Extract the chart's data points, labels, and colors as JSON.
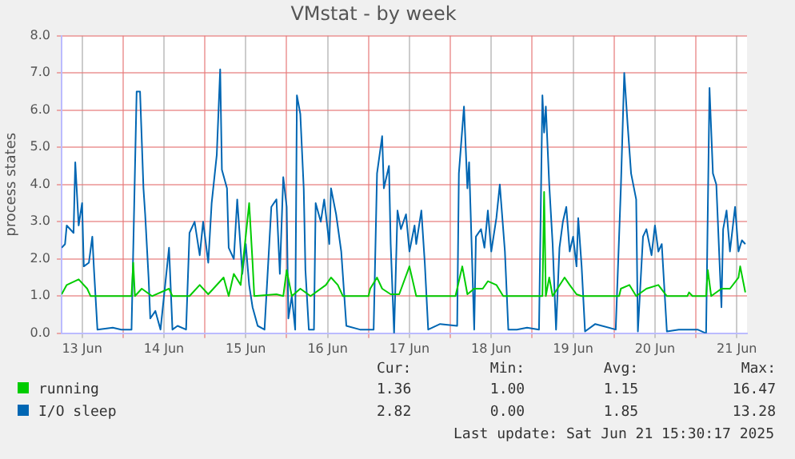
{
  "chart_data": {
    "type": "line",
    "title": "VMstat - by week",
    "ylabel": "process states",
    "xlim": [
      "2025-06-13T06:00",
      "2025-06-21T15:00"
    ],
    "xticks": [
      {
        "value": "2025-06-13T12:00",
        "label": "13 Jun"
      },
      {
        "value": "2025-06-14T00:00",
        "label": null
      },
      {
        "value": "2025-06-14T12:00",
        "label": "14 Jun"
      },
      {
        "value": "2025-06-15T00:00",
        "label": null
      },
      {
        "value": "2025-06-15T12:00",
        "label": "15 Jun"
      },
      {
        "value": "2025-06-16T00:00",
        "label": null
      },
      {
        "value": "2025-06-16T12:00",
        "label": "16 Jun"
      },
      {
        "value": "2025-06-17T00:00",
        "label": null
      },
      {
        "value": "2025-06-17T12:00",
        "label": "17 Jun"
      },
      {
        "value": "2025-06-18T00:00",
        "label": null
      },
      {
        "value": "2025-06-18T12:00",
        "label": "18 Jun"
      },
      {
        "value": "2025-06-19T00:00",
        "label": null
      },
      {
        "value": "2025-06-19T12:00",
        "label": "19 Jun"
      },
      {
        "value": "2025-06-20T00:00",
        "label": null
      },
      {
        "value": "2025-06-20T12:00",
        "label": "20 Jun"
      },
      {
        "value": "2025-06-21T00:00",
        "label": null
      },
      {
        "value": "2025-06-21T12:00",
        "label": "21 Jun"
      }
    ],
    "ylim": [
      0,
      8
    ],
    "yticks": [
      {
        "value": 0,
        "label": "0.0"
      },
      {
        "value": 1,
        "label": "1.0"
      },
      {
        "value": 2,
        "label": "2.0"
      },
      {
        "value": 3,
        "label": "3.0"
      },
      {
        "value": 4,
        "label": "4.0"
      },
      {
        "value": 5,
        "label": "5.0"
      },
      {
        "value": 6,
        "label": "6.0"
      },
      {
        "value": 7,
        "label": "7.0"
      },
      {
        "value": 8,
        "label": "8.0"
      }
    ],
    "grid": true,
    "legend": "bottom",
    "marker": "none",
    "line_style": "solid",
    "series": [
      {
        "name": "running",
        "color": "#00cc00",
        "x": [
          "2025-06-13T06:00",
          "2025-06-13T07:30",
          "2025-06-13T11:00",
          "2025-06-13T13:30",
          "2025-06-13T14:30",
          "2025-06-14T02:30",
          "2025-06-14T03:00",
          "2025-06-14T03:30",
          "2025-06-14T05:30",
          "2025-06-14T08:30",
          "2025-06-14T13:30",
          "2025-06-14T14:30",
          "2025-06-14T19:30",
          "2025-06-14T22:30",
          "2025-06-15T01:00",
          "2025-06-15T05:30",
          "2025-06-15T07:00",
          "2025-06-15T08:30",
          "2025-06-15T10:30",
          "2025-06-15T13:00",
          "2025-06-15T14:00",
          "2025-06-15T14:30",
          "2025-06-15T21:00",
          "2025-06-15T23:00",
          "2025-06-16T00:00",
          "2025-06-16T01:30",
          "2025-06-16T04:00",
          "2025-06-16T07:00",
          "2025-06-16T11:30",
          "2025-06-16T13:00",
          "2025-06-16T15:00",
          "2025-06-16T16:30",
          "2025-06-17T00:00",
          "2025-06-17T00:30",
          "2025-06-17T02:30",
          "2025-06-17T04:00",
          "2025-06-17T06:30",
          "2025-06-17T09:00",
          "2025-06-17T12:00",
          "2025-06-17T14:00",
          "2025-06-18T01:30",
          "2025-06-18T03:30",
          "2025-06-18T05:00",
          "2025-06-18T07:00",
          "2025-06-18T09:30",
          "2025-06-18T11:00",
          "2025-06-18T13:30",
          "2025-06-18T15:30",
          "2025-06-19T03:00",
          "2025-06-19T03:30",
          "2025-06-19T04:00",
          "2025-06-19T05:00",
          "2025-06-19T06:00",
          "2025-06-19T09:30",
          "2025-06-19T11:00",
          "2025-06-19T13:00",
          "2025-06-19T14:30",
          "2025-06-20T01:30",
          "2025-06-20T02:00",
          "2025-06-20T04:30",
          "2025-06-20T06:30",
          "2025-06-20T09:30",
          "2025-06-20T13:00",
          "2025-06-20T15:30",
          "2025-06-20T21:30",
          "2025-06-20T22:00",
          "2025-06-20T23:00",
          "2025-06-21T03:00",
          "2025-06-21T03:30",
          "2025-06-21T04:30",
          "2025-06-21T07:30",
          "2025-06-21T10:00",
          "2025-06-21T12:30",
          "2025-06-21T13:00",
          "2025-06-21T14:30"
        ],
        "values": [
          1.05,
          1.3,
          1.45,
          1.2,
          1.0,
          1.0,
          1.9,
          1.0,
          1.2,
          1.0,
          1.2,
          1.0,
          1.0,
          1.3,
          1.05,
          1.5,
          1.0,
          1.6,
          1.3,
          3.5,
          1.9,
          1.0,
          1.05,
          1.0,
          1.7,
          1.0,
          1.2,
          1.0,
          1.3,
          1.5,
          1.3,
          1.0,
          1.0,
          1.2,
          1.5,
          1.2,
          1.05,
          1.05,
          1.8,
          1.0,
          1.0,
          1.8,
          1.05,
          1.2,
          1.2,
          1.4,
          1.3,
          1.0,
          1.0,
          3.8,
          1.0,
          1.5,
          1.0,
          1.5,
          1.3,
          1.05,
          1.0,
          1.0,
          1.2,
          1.3,
          1.0,
          1.2,
          1.3,
          1.0,
          1.0,
          1.1,
          1.0,
          1.0,
          1.7,
          1.0,
          1.2,
          1.2,
          1.5,
          1.8,
          1.1
        ]
      },
      {
        "name": "I/O sleep",
        "color": "#0066b3",
        "x": [
          "2025-06-13T06:00",
          "2025-06-13T07:00",
          "2025-06-13T07:30",
          "2025-06-13T09:30",
          "2025-06-13T10:00",
          "2025-06-13T11:00",
          "2025-06-13T12:00",
          "2025-06-13T12:30",
          "2025-06-13T14:00",
          "2025-06-13T15:00",
          "2025-06-13T15:30",
          "2025-06-13T16:30",
          "2025-06-13T21:00",
          "2025-06-13T23:30",
          "2025-06-14T02:30",
          "2025-06-14T04:00",
          "2025-06-14T05:00",
          "2025-06-14T06:00",
          "2025-06-14T06:30",
          "2025-06-14T07:30",
          "2025-06-14T08:00",
          "2025-06-14T09:30",
          "2025-06-14T11:00",
          "2025-06-14T13:30",
          "2025-06-14T14:30",
          "2025-06-14T16:00",
          "2025-06-14T18:30",
          "2025-06-14T19:30",
          "2025-06-14T21:00",
          "2025-06-14T22:30",
          "2025-06-14T23:30",
          "2025-06-15T01:00",
          "2025-06-15T02:00",
          "2025-06-15T03:30",
          "2025-06-15T04:30",
          "2025-06-15T05:00",
          "2025-06-15T06:30",
          "2025-06-15T07:00",
          "2025-06-15T08:30",
          "2025-06-15T09:30",
          "2025-06-15T11:00",
          "2025-06-15T12:00",
          "2025-06-15T13:00",
          "2025-06-15T14:00",
          "2025-06-15T15:30",
          "2025-06-15T17:30",
          "2025-06-15T19:30",
          "2025-06-15T21:00",
          "2025-06-15T22:00",
          "2025-06-15T23:00",
          "2025-06-16T00:00",
          "2025-06-16T00:30",
          "2025-06-16T01:30",
          "2025-06-16T02:30",
          "2025-06-16T03:00",
          "2025-06-16T04:00",
          "2025-06-16T05:00",
          "2025-06-16T05:30",
          "2025-06-16T06:30",
          "2025-06-16T08:00",
          "2025-06-16T08:30",
          "2025-06-16T10:00",
          "2025-06-16T11:00",
          "2025-06-16T12:30",
          "2025-06-16T13:00",
          "2025-06-16T14:30",
          "2025-06-16T16:00",
          "2025-06-16T17:30",
          "2025-06-16T21:30",
          "2025-06-17T01:30",
          "2025-06-17T02:30",
          "2025-06-17T04:00",
          "2025-06-17T04:30",
          "2025-06-17T06:00",
          "2025-06-17T06:30",
          "2025-06-17T07:30",
          "2025-06-17T08:30",
          "2025-06-17T09:30",
          "2025-06-17T11:00",
          "2025-06-17T12:00",
          "2025-06-17T13:30",
          "2025-06-17T14:00",
          "2025-06-17T15:30",
          "2025-06-17T16:30",
          "2025-06-17T17:30",
          "2025-06-17T21:00",
          "2025-06-18T02:00",
          "2025-06-18T02:30",
          "2025-06-18T04:00",
          "2025-06-18T05:00",
          "2025-06-18T05:30",
          "2025-06-18T07:00",
          "2025-06-18T07:30",
          "2025-06-18T09:00",
          "2025-06-18T10:00",
          "2025-06-18T11:00",
          "2025-06-18T12:00",
          "2025-06-18T13:30",
          "2025-06-18T14:30",
          "2025-06-18T16:00",
          "2025-06-18T17:00",
          "2025-06-18T19:30",
          "2025-06-18T22:30",
          "2025-06-19T02:00",
          "2025-06-19T03:00",
          "2025-06-19T03:30",
          "2025-06-19T04:00",
          "2025-06-19T05:00",
          "2025-06-19T06:00",
          "2025-06-19T07:00",
          "2025-06-19T08:00",
          "2025-06-19T09:00",
          "2025-06-19T10:00",
          "2025-06-19T11:00",
          "2025-06-19T12:00",
          "2025-06-19T13:00",
          "2025-06-19T13:30",
          "2025-06-19T14:30",
          "2025-06-19T15:30",
          "2025-06-19T18:30",
          "2025-06-20T00:30",
          "2025-06-20T02:00",
          "2025-06-20T03:00",
          "2025-06-20T04:00",
          "2025-06-20T05:00",
          "2025-06-20T06:30",
          "2025-06-20T07:00",
          "2025-06-20T08:30",
          "2025-06-20T09:30",
          "2025-06-20T11:00",
          "2025-06-20T12:00",
          "2025-06-20T13:00",
          "2025-06-20T14:00",
          "2025-06-20T15:30",
          "2025-06-20T19:00",
          "2025-06-20T22:00",
          "2025-06-21T00:30",
          "2025-06-21T03:00",
          "2025-06-21T04:00",
          "2025-06-21T05:00",
          "2025-06-21T06:00",
          "2025-06-21T07:30",
          "2025-06-21T08:00",
          "2025-06-21T09:00",
          "2025-06-21T10:00",
          "2025-06-21T11:30",
          "2025-06-21T12:30",
          "2025-06-21T13:30",
          "2025-06-21T14:30"
        ],
        "values": [
          2.3,
          2.4,
          2.9,
          2.7,
          4.6,
          2.9,
          3.5,
          1.8,
          1.9,
          2.6,
          1.7,
          0.1,
          0.15,
          0.1,
          0.1,
          6.5,
          6.5,
          3.9,
          3.2,
          1.5,
          0.4,
          0.6,
          0.1,
          2.3,
          0.1,
          0.2,
          0.1,
          2.7,
          3.0,
          2.1,
          3.0,
          1.9,
          3.5,
          4.8,
          7.1,
          4.4,
          3.9,
          2.3,
          2.0,
          3.6,
          1.6,
          2.4,
          1.3,
          0.7,
          0.2,
          0.1,
          3.4,
          3.6,
          1.6,
          4.2,
          3.4,
          0.4,
          1.0,
          0.1,
          6.4,
          5.9,
          3.9,
          1.7,
          0.1,
          0.1,
          3.5,
          3.0,
          3.6,
          2.4,
          3.9,
          3.2,
          2.2,
          0.2,
          0.1,
          0.1,
          4.3,
          5.3,
          3.9,
          4.5,
          2.4,
          0.0,
          3.3,
          2.8,
          3.2,
          2.2,
          2.9,
          2.4,
          3.3,
          1.9,
          0.1,
          0.25,
          0.2,
          4.3,
          6.1,
          3.9,
          4.6,
          0.1,
          2.6,
          2.8,
          2.3,
          3.3,
          2.2,
          3.1,
          4.0,
          2.2,
          0.1,
          0.1,
          0.15,
          0.1,
          6.4,
          5.4,
          6.1,
          4.0,
          2.4,
          0.1,
          2.3,
          3.0,
          3.4,
          2.2,
          2.6,
          1.8,
          3.1,
          1.8,
          0.05,
          0.25,
          0.1,
          3.9,
          7.0,
          5.6,
          4.3,
          3.6,
          0.05,
          2.6,
          2.8,
          2.1,
          2.9,
          2.2,
          2.4,
          0.05,
          0.1,
          0.1,
          0.1,
          0.0,
          6.6,
          4.3,
          4.0,
          0.7,
          2.8,
          3.3,
          2.2,
          3.4,
          2.2,
          2.5,
          2.4
        ]
      }
    ],
    "annotations": [
      "Cur:",
      "Min:",
      "Avg:",
      "Max:",
      "1.36",
      "1.00",
      "1.15",
      "16.47",
      "2.82",
      "0.00",
      "1.85",
      "13.28",
      "Last update: Sat Jun 21 15:30:17 2025"
    ]
  }
}
